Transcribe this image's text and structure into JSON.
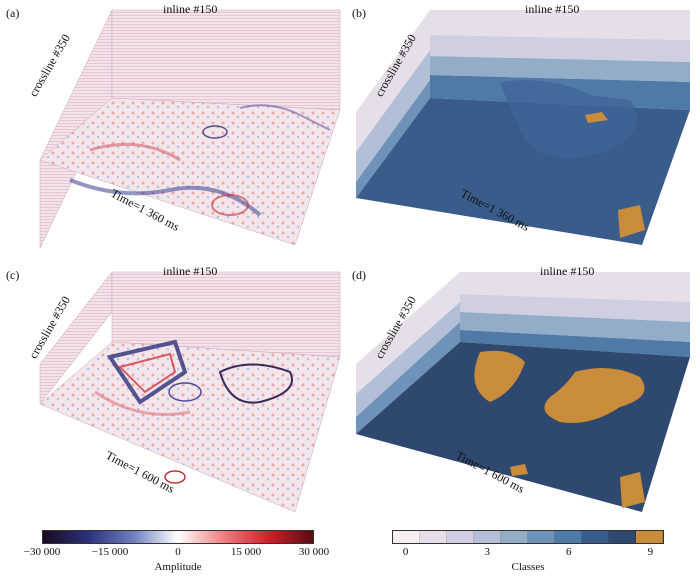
{
  "panels": [
    {
      "id": "a",
      "label": "(a)",
      "inline": "inline #150",
      "crossline": "crossline #350",
      "time": "Time=1 360 ms",
      "kind": "seismic"
    },
    {
      "id": "b",
      "label": "(b)",
      "inline": "inline #150",
      "crossline": "crossline #350",
      "time": "Time=1 360 ms",
      "kind": "classes"
    },
    {
      "id": "c",
      "label": "(c)",
      "inline": "inline #150",
      "crossline": "crossline #350",
      "time": "Time=1 600 ms",
      "kind": "seismic"
    },
    {
      "id": "d",
      "label": "(d)",
      "inline": "inline #150",
      "crossline": "crossline #350",
      "time": "Time=1 600 ms",
      "kind": "classes"
    }
  ],
  "amplitude_bar": {
    "title": "Amplitude",
    "ticks": [
      "−30 000",
      "−15 000",
      "0",
      "15 000",
      "30 000"
    ],
    "tick_values": [
      -30000,
      -15000,
      0,
      15000,
      30000
    ],
    "colors": [
      "#1a0a1e",
      "#2c2f7a",
      "#6f7fc0",
      "#ffffff",
      "#f08080",
      "#d0202a",
      "#5a0a10"
    ]
  },
  "classes_bar": {
    "title": "Classes",
    "ticks": [
      "0",
      "3",
      "6",
      "9"
    ],
    "tick_values": [
      0,
      3,
      6,
      9
    ],
    "colors": [
      "#f6eef2",
      "#e6dfe9",
      "#cfcfe1",
      "#b2bfd6",
      "#93adc9",
      "#6f93b8",
      "#4f7aa6",
      "#3a5c8a",
      "#2e4870",
      "#c98c3a"
    ]
  }
}
